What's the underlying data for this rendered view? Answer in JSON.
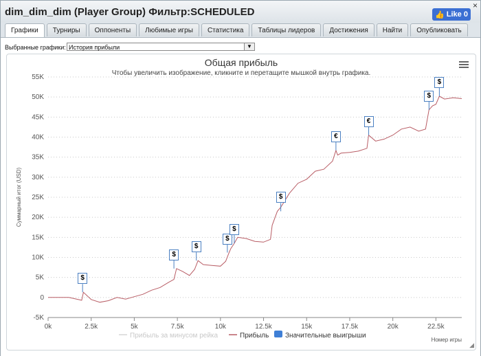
{
  "window": {
    "title": "dim_dim_dim (Player Group) Фильтр:SCHEDULED",
    "close_glyph": "×"
  },
  "like_button": {
    "label": "Like 0"
  },
  "tabs": [
    {
      "label": "Графики",
      "active": true
    },
    {
      "label": "Турниры"
    },
    {
      "label": "Оппоненты"
    },
    {
      "label": "Любимые игры"
    },
    {
      "label": "Статистика"
    },
    {
      "label": "Таблицы лидеров"
    },
    {
      "label": "Достижения"
    },
    {
      "label": "Найти"
    },
    {
      "label": "Опубликовать"
    }
  ],
  "chart_selector": {
    "label": "Выбранные графики:",
    "value": "История прибыли"
  },
  "chart_data": {
    "type": "line",
    "title": "Общая прибыль",
    "subtitle": "Чтобы увеличить изображение, кликните и перетащите мышкой внутрь графика.",
    "ylabel": "Суммарный итог (USD)",
    "xlabel": "Номер игры",
    "ylim": [
      -5000,
      55000
    ],
    "xlim": [
      0,
      24000
    ],
    "y_ticks": [
      "55K",
      "50K",
      "45K",
      "40K",
      "35K",
      "30K",
      "25K",
      "20K",
      "15K",
      "10K",
      "5K",
      "0",
      "-5K"
    ],
    "x_ticks": [
      "0k",
      "2.5k",
      "5k",
      "7.5k",
      "10k",
      "12.5k",
      "15k",
      "17.5k",
      "20k",
      "22.5k"
    ],
    "grid": true,
    "legend": {
      "placement": "bottom",
      "items": [
        {
          "name": "Прибыль за минусом рейка",
          "color": "#d6d6d6",
          "enabled": false
        },
        {
          "name": "Прибыль",
          "color": "#b85c64",
          "enabled": true
        },
        {
          "name": "Значительные выигрыши",
          "color": "#3f7fd6",
          "enabled": true
        }
      ]
    },
    "series": [
      {
        "name": "Прибыль",
        "color": "#b85c64",
        "x": [
          0,
          1200,
          1950,
          2050,
          2500,
          3000,
          3500,
          4000,
          4500,
          5000,
          5500,
          6000,
          6500,
          7000,
          7300,
          7450,
          7800,
          8200,
          8500,
          8700,
          9000,
          9500,
          10000,
          10300,
          10500,
          10600,
          10800,
          11000,
          11500,
          12000,
          12500,
          12900,
          13000,
          13300,
          13500,
          14000,
          14500,
          15000,
          15500,
          16000,
          16500,
          16700,
          16800,
          17000,
          17500,
          18000,
          18500,
          18600,
          19000,
          19500,
          20000,
          20500,
          21000,
          21500,
          21900,
          22100,
          22300,
          22500,
          22700,
          23000,
          23500,
          24000
        ],
        "y": [
          0,
          0,
          -700,
          1300,
          -500,
          -1200,
          -800,
          0,
          -400,
          200,
          800,
          1800,
          2500,
          3800,
          4500,
          7200,
          6500,
          5500,
          7000,
          9200,
          8200,
          8000,
          7800,
          9000,
          11200,
          12200,
          13500,
          15000,
          14700,
          14000,
          13800,
          14500,
          18000,
          21500,
          22500,
          26000,
          28500,
          29500,
          31500,
          32000,
          34000,
          36700,
          35500,
          36000,
          36200,
          36500,
          37200,
          40500,
          39000,
          39500,
          40500,
          42000,
          42500,
          41500,
          42000,
          46800,
          47800,
          48200,
          50200,
          49500,
          49800,
          49600
        ]
      },
      {
        "name": "Значительные выигрыши",
        "color": "#3f7fd6",
        "markers": [
          {
            "x": 2000,
            "y": 1300,
            "label": "$"
          },
          {
            "x": 7300,
            "y": 7200,
            "label": "$"
          },
          {
            "x": 8600,
            "y": 9200,
            "label": "$"
          },
          {
            "x": 10400,
            "y": 11200,
            "label": "$"
          },
          {
            "x": 10800,
            "y": 13500,
            "label": "$"
          },
          {
            "x": 13500,
            "y": 21500,
            "label": "$"
          },
          {
            "x": 16700,
            "y": 36700,
            "label": "€"
          },
          {
            "x": 18600,
            "y": 40500,
            "label": "€"
          },
          {
            "x": 22100,
            "y": 46800,
            "label": "$"
          },
          {
            "x": 22700,
            "y": 50200,
            "label": "$"
          }
        ]
      }
    ]
  }
}
